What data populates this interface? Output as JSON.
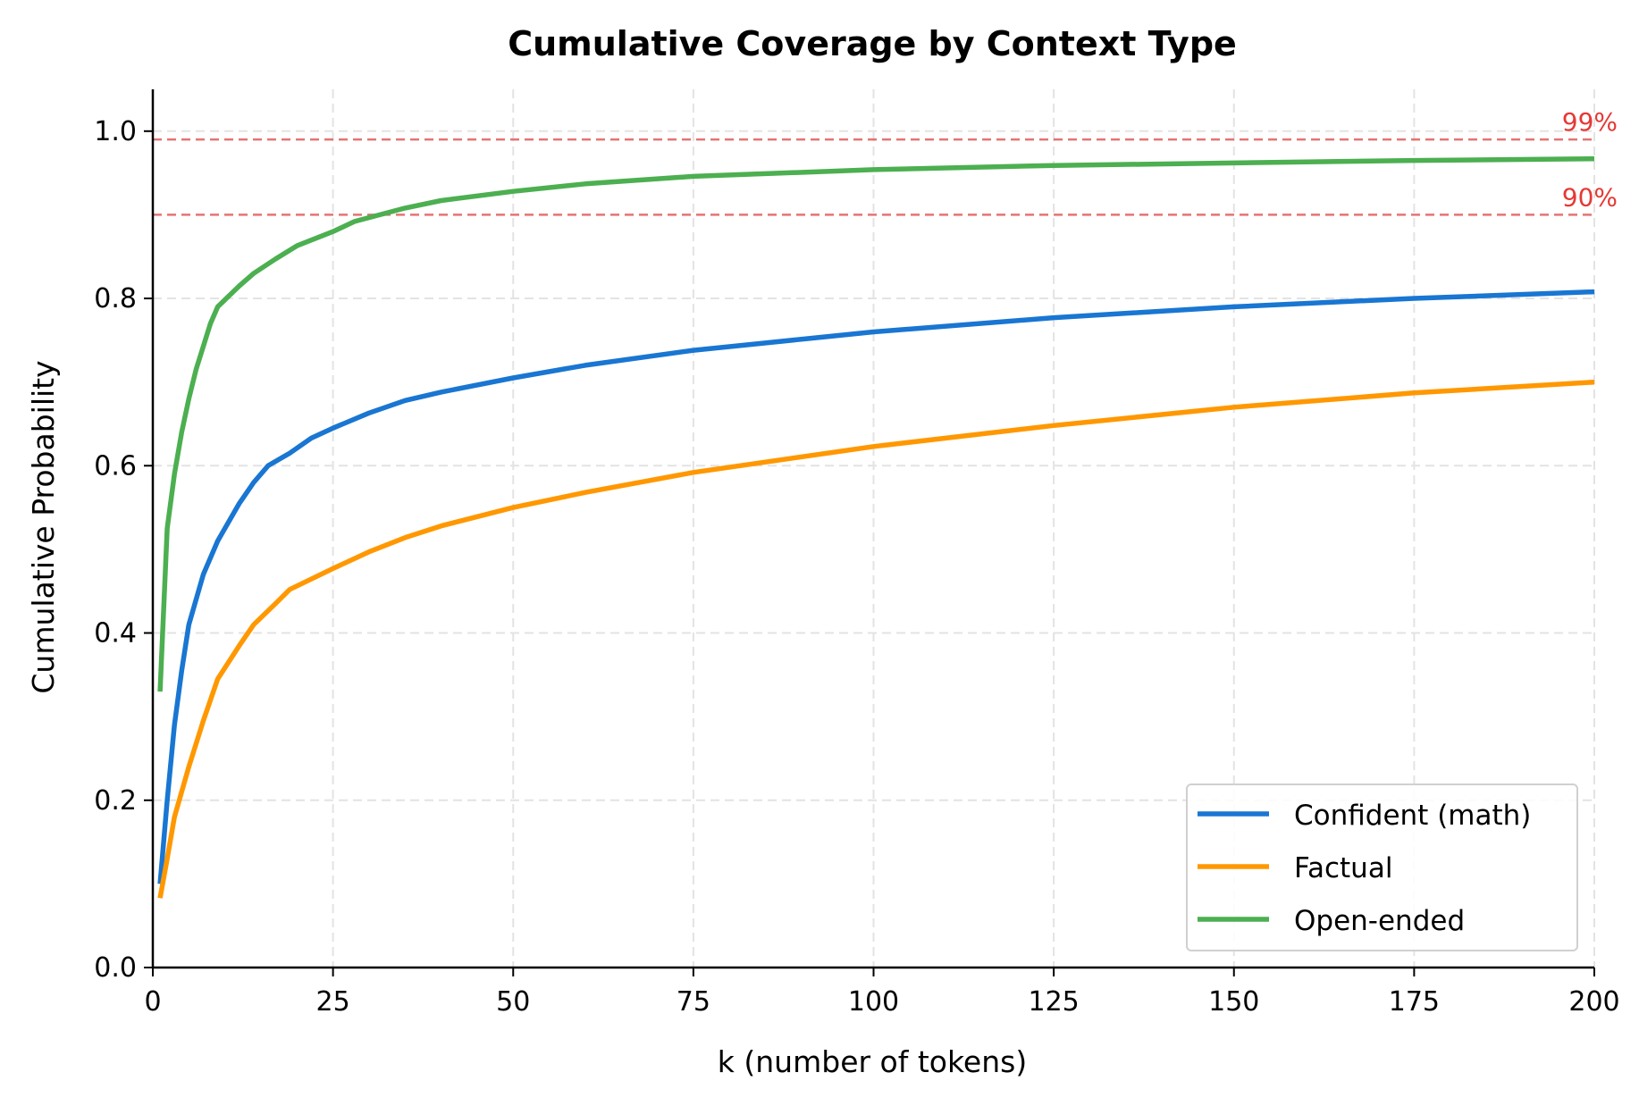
{
  "chart_data": {
    "type": "line",
    "title": "Cumulative Coverage by Context Type",
    "xlabel": "k (number of tokens)",
    "ylabel": "Cumulative Probability",
    "xlim": [
      0,
      200
    ],
    "ylim": [
      0,
      1.05
    ],
    "xticks": [
      0,
      25,
      50,
      75,
      100,
      125,
      150,
      175,
      200
    ],
    "xtick_labels": [
      "0",
      "25",
      "50",
      "75",
      "100",
      "125",
      "150",
      "175",
      "200"
    ],
    "yticks": [
      0,
      0.2,
      0.4,
      0.6,
      0.8,
      1.0
    ],
    "ytick_labels": [
      "0.0",
      "0.2",
      "0.4",
      "0.6",
      "0.8",
      "1.0"
    ],
    "grid": true,
    "legend_placement": "lower-right",
    "reference_lines": [
      {
        "y": 0.99,
        "label": "99%",
        "color": "#e57373"
      },
      {
        "y": 0.9,
        "label": "90%",
        "color": "#e57373"
      }
    ],
    "series": [
      {
        "name": "Confident (math)",
        "color": "#1976d2",
        "x": [
          1,
          2,
          3,
          4,
          5,
          7,
          9,
          12,
          14,
          16,
          19,
          22,
          25,
          30,
          35,
          40,
          50,
          60,
          75,
          100,
          125,
          150,
          175,
          200
        ],
        "y": [
          0.1,
          0.2,
          0.29,
          0.355,
          0.41,
          0.47,
          0.51,
          0.555,
          0.58,
          0.6,
          0.615,
          0.633,
          0.645,
          0.663,
          0.678,
          0.688,
          0.705,
          0.72,
          0.738,
          0.76,
          0.777,
          0.79,
          0.8,
          0.808
        ]
      },
      {
        "name": "Factual",
        "color": "#ff9800",
        "x": [
          1,
          2,
          3,
          5,
          7,
          9,
          12,
          14,
          17,
          19,
          25,
          30,
          35,
          40,
          50,
          60,
          75,
          100,
          125,
          150,
          175,
          200
        ],
        "y": [
          0.083,
          0.13,
          0.18,
          0.24,
          0.295,
          0.345,
          0.385,
          0.41,
          0.435,
          0.452,
          0.477,
          0.497,
          0.514,
          0.528,
          0.55,
          0.568,
          0.592,
          0.623,
          0.648,
          0.67,
          0.687,
          0.7
        ]
      },
      {
        "name": "Open-ended",
        "color": "#4caf50",
        "x": [
          1,
          2,
          3,
          4,
          5,
          6,
          8,
          9,
          12,
          14,
          17,
          20,
          25,
          28,
          35,
          40,
          50,
          60,
          75,
          100,
          125,
          150,
          175,
          200
        ],
        "y": [
          0.33,
          0.525,
          0.59,
          0.64,
          0.68,
          0.715,
          0.77,
          0.79,
          0.815,
          0.83,
          0.847,
          0.863,
          0.88,
          0.892,
          0.908,
          0.917,
          0.928,
          0.937,
          0.946,
          0.954,
          0.959,
          0.962,
          0.965,
          0.967
        ]
      }
    ]
  }
}
